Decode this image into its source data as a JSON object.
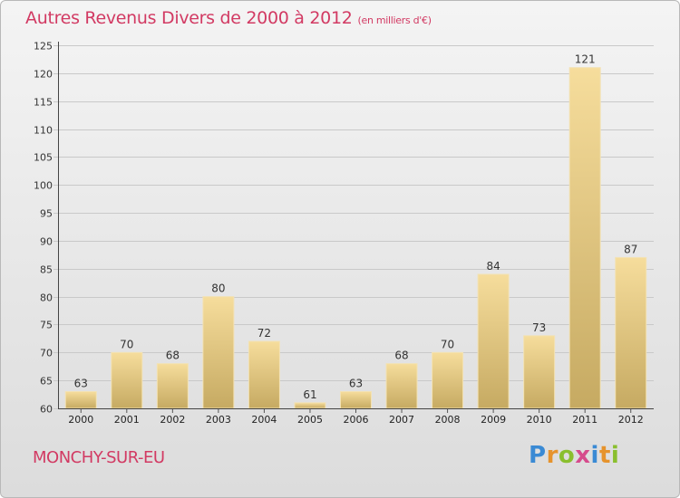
{
  "title": "Autres Revenus Divers de 2000 à 2012",
  "title_unit": "(en milliers d'€)",
  "location": "MONCHY-SUR-EU",
  "brand": {
    "letters": [
      "P",
      "r",
      "o",
      "x",
      "i",
      "t",
      "i"
    ],
    "colors": [
      "#3a8ad4",
      "#e6932c",
      "#8abf2e",
      "#d64b8c",
      "#3a8ad4",
      "#e6932c",
      "#8abf2e"
    ]
  },
  "colors": {
    "title": "#d23a63",
    "bar_light": "#f6dd9c",
    "bar_dark": "#c6aa62"
  },
  "chart_data": {
    "type": "bar",
    "categories": [
      "2000",
      "2001",
      "2002",
      "2003",
      "2004",
      "2005",
      "2006",
      "2007",
      "2008",
      "2009",
      "2010",
      "2011",
      "2012"
    ],
    "values": [
      63,
      70,
      68,
      80,
      72,
      61,
      63,
      68,
      70,
      84,
      73,
      121,
      87
    ],
    "ylim": [
      60,
      125
    ],
    "yticks": [
      60,
      65,
      70,
      75,
      80,
      85,
      90,
      95,
      100,
      105,
      110,
      115,
      120,
      125
    ],
    "grid": true
  }
}
